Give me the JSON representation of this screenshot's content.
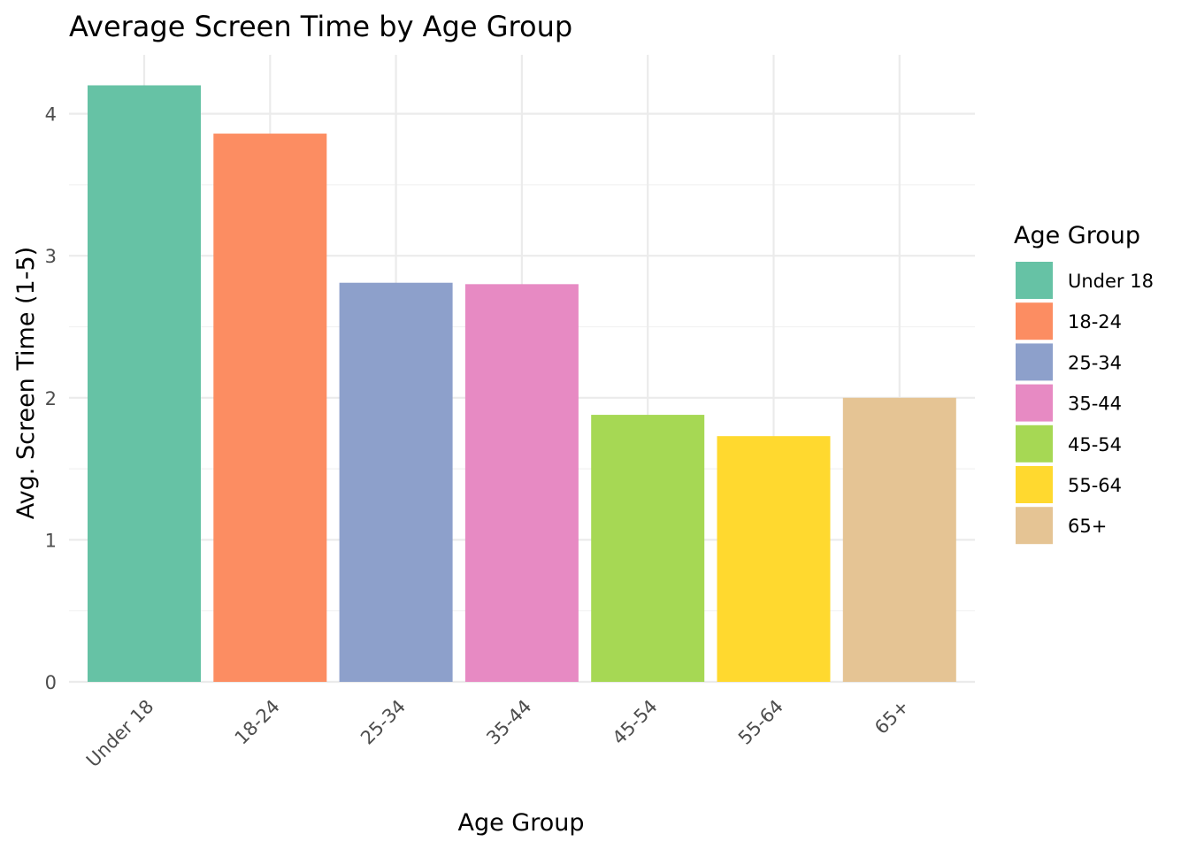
{
  "chart_data": {
    "type": "bar",
    "title": "Average Screen Time by Age Group",
    "xlabel": "Age Group",
    "ylabel": "Avg. Screen Time (1-5)",
    "categories": [
      "Under 18",
      "18-24",
      "25-34",
      "35-44",
      "45-54",
      "55-64",
      "65+"
    ],
    "values": [
      4.2,
      3.86,
      2.81,
      2.8,
      1.88,
      1.73,
      2.0
    ],
    "colors": [
      "#66c2a5",
      "#fc8d62",
      "#8da0cb",
      "#e78ac3",
      "#a6d854",
      "#ffd92f",
      "#e5c494"
    ],
    "ylim": [
      0,
      4.2
    ],
    "yticks": [
      0,
      1,
      2,
      3,
      4
    ],
    "grid": true,
    "legend": {
      "title": "Age Group",
      "placement": "right",
      "entries": [
        "Under 18",
        "18-24",
        "25-34",
        "35-44",
        "45-54",
        "55-64",
        "65+"
      ]
    }
  }
}
